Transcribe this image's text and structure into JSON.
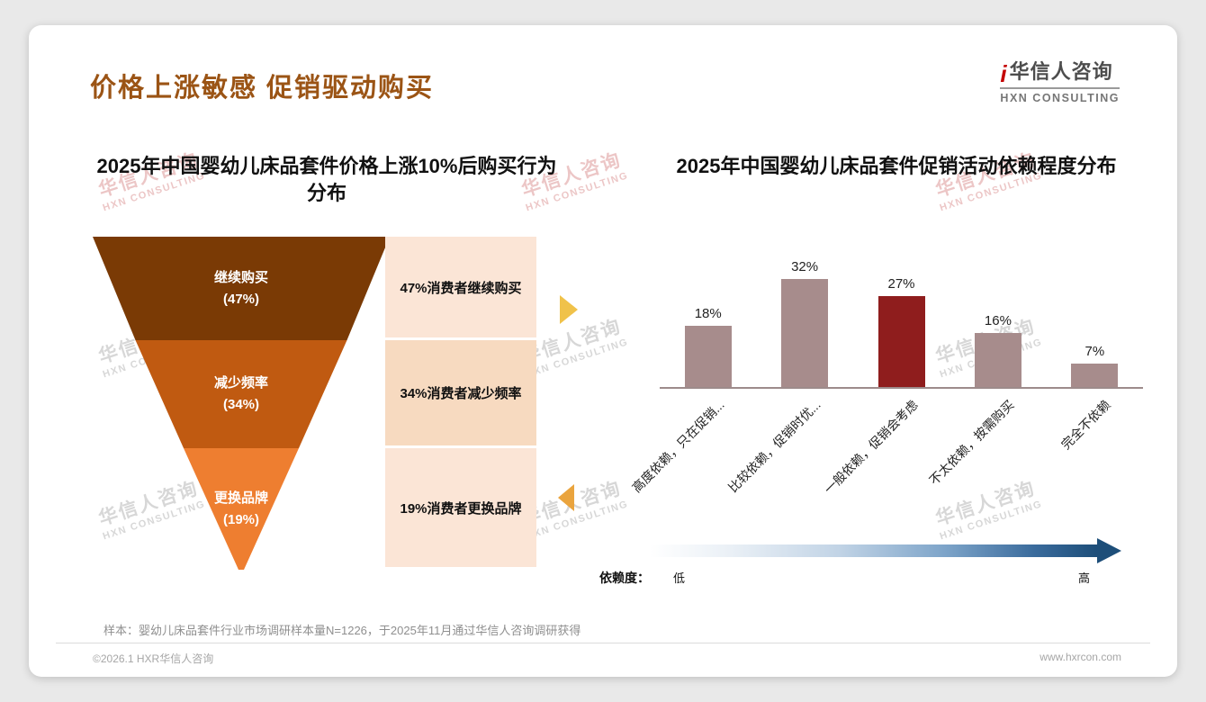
{
  "header": {
    "title": "价格上涨敏感 促销驱动购买",
    "title_color": "#9b5415",
    "logo": {
      "mark": "i",
      "mark_color": "#c40000",
      "cn": "华信人咨询",
      "en": "HXN CONSULTING"
    }
  },
  "watermark": {
    "line1": "华信人咨询",
    "line2": "HXN CONSULTING"
  },
  "funnel": {
    "title": "2025年中国婴幼儿床品套件价格上涨10%后购买行为\n分布",
    "segments": [
      {
        "label": "继续购买",
        "value_label": "(47%)",
        "value": 47,
        "color": "#7a3a05",
        "annotation": "47%消费者继续购买",
        "annotation_bg": "#fbe5d6"
      },
      {
        "label": "减少频率",
        "value_label": "(34%)",
        "value": 34,
        "color": "#c05a11",
        "annotation": "34%消费者减少频率",
        "annotation_bg": "#f7dac0"
      },
      {
        "label": "更换品牌",
        "value_label": "(19%)",
        "value": 19,
        "color": "#ee7e30",
        "annotation": "19%消费者更换品牌",
        "annotation_bg": "#fbe5d6"
      }
    ]
  },
  "bar": {
    "title": "2025年中国婴幼儿床品套件促销活动依赖程度分布",
    "categories": [
      "高度依赖，只在促销...",
      "比较依赖，促销时优...",
      "一般依赖，促销会考虑",
      "不太依赖，按需购买",
      "完全不依赖"
    ],
    "values": [
      18,
      32,
      27,
      16,
      7
    ],
    "value_labels": [
      "18%",
      "32%",
      "27%",
      "16%",
      "7%"
    ],
    "bar_colors": [
      "#a78c8c",
      "#a78c8c",
      "#8f1d1d",
      "#a78c8c",
      "#a78c8c"
    ],
    "scale": {
      "label": "依赖度：",
      "low": "低",
      "high": "高"
    }
  },
  "chart_data": [
    {
      "type": "funnel",
      "title": "2025年中国婴幼儿床品套件价格上涨10%后购买行为分布",
      "categories": [
        "继续购买",
        "减少频率",
        "更换品牌"
      ],
      "values": [
        47,
        34,
        19
      ],
      "unit": "%",
      "annotations": [
        "47%消费者继续购买",
        "34%消费者减少频率",
        "19%消费者更换品牌"
      ]
    },
    {
      "type": "bar",
      "title": "2025年中国婴幼儿床品套件促销活动依赖程度分布",
      "categories": [
        "高度依赖，只在促销...",
        "比较依赖，促销时优...",
        "一般依赖，促销会考虑",
        "不太依赖，按需购买",
        "完全不依赖"
      ],
      "values": [
        18,
        32,
        27,
        16,
        7
      ],
      "unit": "%",
      "ylim": [
        0,
        35
      ],
      "highlight_index": 2,
      "legend": null,
      "grid": false,
      "x_scale_annotation": {
        "label": "依赖度：",
        "left": "低",
        "right": "高"
      }
    }
  ],
  "footer": {
    "sample_note": "样本：婴幼儿床品套件行业市场调研样本量N=1226，于2025年11月通过华信人咨询调研获得",
    "copyright": "©2026.1 HXR华信人咨询",
    "website": "www.hxrcon.com"
  }
}
